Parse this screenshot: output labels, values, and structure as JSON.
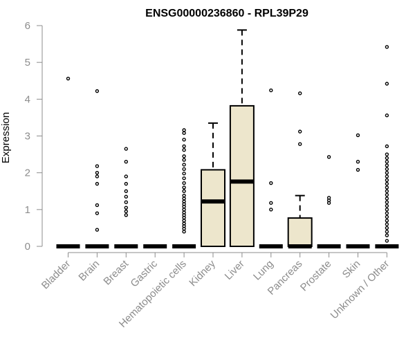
{
  "colors": {
    "axis": "#8c8c8c",
    "box_fill": "#ede6cc",
    "stroke": "#000000"
  },
  "chart_data": {
    "type": "box",
    "title": "ENSG00000236860 - RPL39P29",
    "xlabel": "",
    "ylabel": "Expression",
    "ylim": [
      0,
      6
    ],
    "yticks": [
      0,
      1,
      2,
      3,
      4,
      5,
      6
    ],
    "categories": [
      "Bladder",
      "Brain",
      "Breast",
      "Gastric",
      "Hematopoietic cells",
      "Kidney",
      "Liver",
      "Lung",
      "Pancreas",
      "Prostate",
      "Skin",
      "Unknown / Other"
    ],
    "boxes": [
      {
        "category": "Bladder",
        "q1": 0,
        "median": 0,
        "q3": 0,
        "whisker_low": 0,
        "whisker_high": 0,
        "outliers": [
          4.56
        ]
      },
      {
        "category": "Brain",
        "q1": 0,
        "median": 0,
        "q3": 0,
        "whisker_low": 0,
        "whisker_high": 0,
        "outliers": [
          4.22,
          2.18,
          2.0,
          1.9,
          1.7,
          1.12,
          0.9,
          0.45
        ]
      },
      {
        "category": "Breast",
        "q1": 0,
        "median": 0,
        "q3": 0,
        "whisker_low": 0,
        "whisker_high": 0,
        "outliers": [
          2.65,
          2.3,
          1.9,
          1.7,
          1.5,
          1.35,
          1.2,
          1.05,
          0.95,
          0.85
        ]
      },
      {
        "category": "Gastric",
        "q1": 0,
        "median": 0,
        "q3": 0,
        "whisker_low": 0,
        "whisker_high": 0,
        "outliers": []
      },
      {
        "category": "Hematopoietic cells",
        "q1": 0,
        "median": 0,
        "q3": 0,
        "whisker_low": 0,
        "whisker_high": 0,
        "outliers": [
          3.16,
          3.08,
          2.9,
          2.72,
          2.62,
          2.45,
          2.35,
          2.22,
          2.1,
          1.98,
          1.85,
          1.72,
          1.6,
          1.5,
          1.38,
          1.3,
          1.22,
          1.15,
          1.08,
          1.0,
          0.92,
          0.85,
          0.78,
          0.7,
          0.62,
          0.55,
          0.48,
          0.4
        ]
      },
      {
        "category": "Kidney",
        "q1": 0,
        "median": 1.22,
        "q3": 2.08,
        "whisker_low": 0,
        "whisker_high": 3.35,
        "outliers": []
      },
      {
        "category": "Liver",
        "q1": 0,
        "median": 1.76,
        "q3": 3.82,
        "whisker_low": 0,
        "whisker_high": 5.88,
        "outliers": []
      },
      {
        "category": "Lung",
        "q1": 0,
        "median": 0,
        "q3": 0,
        "whisker_low": 0,
        "whisker_high": 0,
        "outliers": [
          4.24,
          1.72,
          1.18,
          1.0
        ]
      },
      {
        "category": "Pancreas",
        "q1": 0,
        "median": 0,
        "q3": 0.77,
        "whisker_low": 0,
        "whisker_high": 1.38,
        "outliers": [
          4.16,
          3.12,
          2.78
        ]
      },
      {
        "category": "Prostate",
        "q1": 0,
        "median": 0,
        "q3": 0,
        "whisker_low": 0,
        "whisker_high": 0,
        "outliers": [
          2.43,
          1.32,
          1.25,
          1.18
        ]
      },
      {
        "category": "Skin",
        "q1": 0,
        "median": 0,
        "q3": 0,
        "whisker_low": 0,
        "whisker_high": 0,
        "outliers": [
          3.02,
          2.3,
          2.08
        ]
      },
      {
        "category": "Unknown / Other",
        "q1": 0,
        "median": 0,
        "q3": 0,
        "whisker_low": 0,
        "whisker_high": 0,
        "outliers": [
          5.42,
          4.42,
          3.56,
          2.72,
          2.5,
          2.4,
          2.3,
          2.2,
          2.1,
          2.0,
          1.9,
          1.8,
          1.7,
          1.6,
          1.5,
          1.4,
          1.3,
          1.2,
          1.1,
          1.0,
          0.9,
          0.8,
          0.7,
          0.6,
          0.5,
          0.4,
          0.3,
          0.15
        ]
      }
    ]
  }
}
